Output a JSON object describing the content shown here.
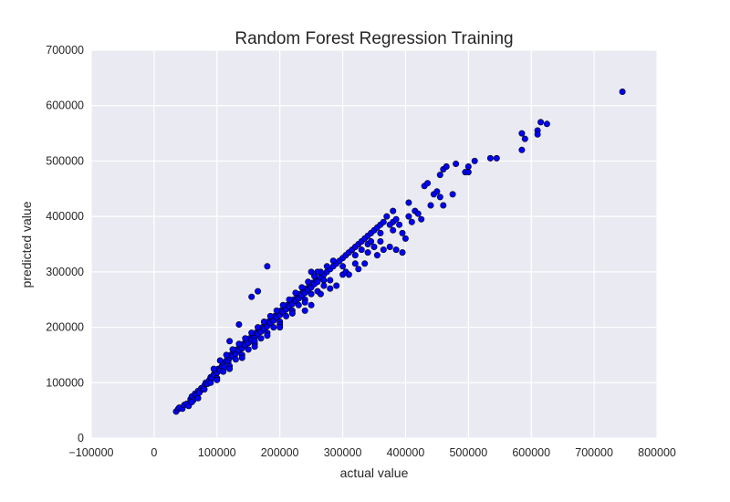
{
  "chart_data": {
    "type": "scatter",
    "title": "Random Forest Regression Training",
    "xlabel": "actual value",
    "ylabel": "predicted value",
    "xlim": [
      -100000,
      800000
    ],
    "ylim": [
      0,
      700000
    ],
    "x_ticks": [
      -100000,
      0,
      100000,
      200000,
      300000,
      400000,
      500000,
      600000,
      700000,
      800000
    ],
    "x_tick_labels": [
      "−100000",
      "0",
      "100000",
      "200000",
      "300000",
      "400000",
      "500000",
      "600000",
      "700000",
      "800000"
    ],
    "y_ticks": [
      0,
      100000,
      200000,
      300000,
      400000,
      500000,
      600000,
      700000
    ],
    "y_tick_labels": [
      "0",
      "100000",
      "200000",
      "300000",
      "400000",
      "500000",
      "600000",
      "700000"
    ],
    "grid": true,
    "colors": {
      "point_fill": "#0000ff",
      "point_edge": "#000000",
      "plot_bg": "#eaeaf2",
      "grid": "#ffffff"
    },
    "points": [
      [
        35000,
        48000
      ],
      [
        38000,
        52000
      ],
      [
        40000,
        55000
      ],
      [
        45000,
        53000
      ],
      [
        48000,
        60000
      ],
      [
        52000,
        62000
      ],
      [
        55000,
        58000
      ],
      [
        58000,
        70000
      ],
      [
        60000,
        75000
      ],
      [
        62000,
        68000
      ],
      [
        65000,
        80000
      ],
      [
        68000,
        78000
      ],
      [
        70000,
        85000
      ],
      [
        72000,
        82000
      ],
      [
        75000,
        90000
      ],
      [
        78000,
        88000
      ],
      [
        80000,
        95000
      ],
      [
        82000,
        100000
      ],
      [
        85000,
        98000
      ],
      [
        88000,
        105000
      ],
      [
        90000,
        110000
      ],
      [
        92000,
        108000
      ],
      [
        95000,
        115000
      ],
      [
        98000,
        120000
      ],
      [
        100000,
        118000
      ],
      [
        102000,
        125000
      ],
      [
        105000,
        122000
      ],
      [
        108000,
        130000
      ],
      [
        110000,
        135000
      ],
      [
        112000,
        128000
      ],
      [
        115000,
        140000
      ],
      [
        118000,
        138000
      ],
      [
        120000,
        145000
      ],
      [
        122000,
        150000
      ],
      [
        125000,
        148000
      ],
      [
        128000,
        155000
      ],
      [
        130000,
        152000
      ],
      [
        132000,
        160000
      ],
      [
        135000,
        158000
      ],
      [
        138000,
        165000
      ],
      [
        140000,
        162000
      ],
      [
        142000,
        170000
      ],
      [
        145000,
        168000
      ],
      [
        148000,
        175000
      ],
      [
        150000,
        172000
      ],
      [
        152000,
        180000
      ],
      [
        155000,
        178000
      ],
      [
        158000,
        185000
      ],
      [
        160000,
        182000
      ],
      [
        162000,
        190000
      ],
      [
        165000,
        188000
      ],
      [
        168000,
        195000
      ],
      [
        170000,
        192000
      ],
      [
        172000,
        200000
      ],
      [
        175000,
        198000
      ],
      [
        178000,
        205000
      ],
      [
        180000,
        202000
      ],
      [
        182000,
        210000
      ],
      [
        185000,
        208000
      ],
      [
        188000,
        215000
      ],
      [
        190000,
        212000
      ],
      [
        192000,
        220000
      ],
      [
        195000,
        218000
      ],
      [
        198000,
        225000
      ],
      [
        200000,
        222000
      ],
      [
        202000,
        230000
      ],
      [
        205000,
        228000
      ],
      [
        208000,
        235000
      ],
      [
        210000,
        232000
      ],
      [
        212000,
        240000
      ],
      [
        215000,
        238000
      ],
      [
        218000,
        245000
      ],
      [
        220000,
        242000
      ],
      [
        222000,
        250000
      ],
      [
        225000,
        248000
      ],
      [
        228000,
        255000
      ],
      [
        230000,
        252000
      ],
      [
        232000,
        260000
      ],
      [
        235000,
        258000
      ],
      [
        238000,
        265000
      ],
      [
        240000,
        262000
      ],
      [
        242000,
        270000
      ],
      [
        245000,
        268000
      ],
      [
        248000,
        275000
      ],
      [
        250000,
        272000
      ],
      [
        252000,
        280000
      ],
      [
        255000,
        278000
      ],
      [
        258000,
        285000
      ],
      [
        260000,
        282000
      ],
      [
        265000,
        290000
      ],
      [
        270000,
        295000
      ],
      [
        275000,
        300000
      ],
      [
        280000,
        305000
      ],
      [
        285000,
        310000
      ],
      [
        290000,
        315000
      ],
      [
        295000,
        320000
      ],
      [
        300000,
        325000
      ],
      [
        305000,
        330000
      ],
      [
        310000,
        335000
      ],
      [
        315000,
        340000
      ],
      [
        320000,
        345000
      ],
      [
        325000,
        350000
      ],
      [
        330000,
        355000
      ],
      [
        335000,
        360000
      ],
      [
        340000,
        365000
      ],
      [
        345000,
        370000
      ],
      [
        350000,
        375000
      ],
      [
        355000,
        380000
      ],
      [
        360000,
        385000
      ],
      [
        365000,
        390000
      ],
      [
        60000,
        65000
      ],
      [
        70000,
        72000
      ],
      [
        80000,
        88000
      ],
      [
        90000,
        100000
      ],
      [
        100000,
        108000
      ],
      [
        110000,
        120000
      ],
      [
        120000,
        130000
      ],
      [
        130000,
        142000
      ],
      [
        140000,
        150000
      ],
      [
        150000,
        160000
      ],
      [
        160000,
        170000
      ],
      [
        170000,
        180000
      ],
      [
        180000,
        190000
      ],
      [
        190000,
        200000
      ],
      [
        200000,
        210000
      ],
      [
        210000,
        220000
      ],
      [
        220000,
        230000
      ],
      [
        230000,
        240000
      ],
      [
        240000,
        250000
      ],
      [
        250000,
        260000
      ],
      [
        95000,
        125000
      ],
      [
        105000,
        140000
      ],
      [
        115000,
        150000
      ],
      [
        125000,
        160000
      ],
      [
        135000,
        170000
      ],
      [
        145000,
        180000
      ],
      [
        155000,
        190000
      ],
      [
        165000,
        200000
      ],
      [
        175000,
        210000
      ],
      [
        185000,
        220000
      ],
      [
        195000,
        230000
      ],
      [
        205000,
        240000
      ],
      [
        215000,
        250000
      ],
      [
        225000,
        262000
      ],
      [
        235000,
        272000
      ],
      [
        245000,
        282000
      ],
      [
        255000,
        292000
      ],
      [
        265000,
        300000
      ],
      [
        275000,
        310000
      ],
      [
        285000,
        320000
      ],
      [
        100000,
        105000
      ],
      [
        120000,
        125000
      ],
      [
        140000,
        145000
      ],
      [
        160000,
        165000
      ],
      [
        180000,
        185000
      ],
      [
        200000,
        205000
      ],
      [
        220000,
        225000
      ],
      [
        240000,
        245000
      ],
      [
        260000,
        265000
      ],
      [
        280000,
        285000
      ],
      [
        300000,
        310000
      ],
      [
        320000,
        330000
      ],
      [
        340000,
        350000
      ],
      [
        360000,
        370000
      ],
      [
        380000,
        390000
      ],
      [
        300000,
        295000
      ],
      [
        320000,
        315000
      ],
      [
        340000,
        335000
      ],
      [
        360000,
        355000
      ],
      [
        380000,
        375000
      ],
      [
        370000,
        400000
      ],
      [
        375000,
        385000
      ],
      [
        380000,
        410000
      ],
      [
        385000,
        395000
      ],
      [
        390000,
        385000
      ],
      [
        395000,
        370000
      ],
      [
        400000,
        360000
      ],
      [
        405000,
        400000
      ],
      [
        410000,
        390000
      ],
      [
        415000,
        410000
      ],
      [
        420000,
        405000
      ],
      [
        425000,
        395000
      ],
      [
        375000,
        345000
      ],
      [
        385000,
        340000
      ],
      [
        395000,
        335000
      ],
      [
        365000,
        340000
      ],
      [
        355000,
        330000
      ],
      [
        335000,
        315000
      ],
      [
        325000,
        305000
      ],
      [
        270000,
        285000
      ],
      [
        260000,
        300000
      ],
      [
        280000,
        270000
      ],
      [
        290000,
        275000
      ],
      [
        305000,
        300000
      ],
      [
        310000,
        295000
      ],
      [
        345000,
        355000
      ],
      [
        350000,
        345000
      ],
      [
        330000,
        340000
      ],
      [
        240000,
        230000
      ],
      [
        250000,
        240000
      ],
      [
        405000,
        425000
      ],
      [
        430000,
        455000
      ],
      [
        435000,
        460000
      ],
      [
        445000,
        440000
      ],
      [
        450000,
        445000
      ],
      [
        455000,
        475000
      ],
      [
        460000,
        485000
      ],
      [
        465000,
        490000
      ],
      [
        475000,
        440000
      ],
      [
        480000,
        495000
      ],
      [
        495000,
        480000
      ],
      [
        500000,
        490000
      ],
      [
        500000,
        480000
      ],
      [
        510000,
        500000
      ],
      [
        455000,
        435000
      ],
      [
        440000,
        420000
      ],
      [
        460000,
        420000
      ],
      [
        535000,
        505000
      ],
      [
        545000,
        505000
      ],
      [
        585000,
        550000
      ],
      [
        590000,
        540000
      ],
      [
        585000,
        520000
      ],
      [
        610000,
        555000
      ],
      [
        610000,
        548000
      ],
      [
        615000,
        570000
      ],
      [
        625000,
        567000
      ],
      [
        745000,
        625000
      ],
      [
        180000,
        310000
      ],
      [
        155000,
        255000
      ],
      [
        165000,
        265000
      ],
      [
        135000,
        205000
      ],
      [
        250000,
        300000
      ],
      [
        270000,
        275000
      ],
      [
        265000,
        260000
      ],
      [
        120000,
        175000
      ],
      [
        200000,
        200000
      ],
      [
        160000,
        175000
      ]
    ]
  }
}
